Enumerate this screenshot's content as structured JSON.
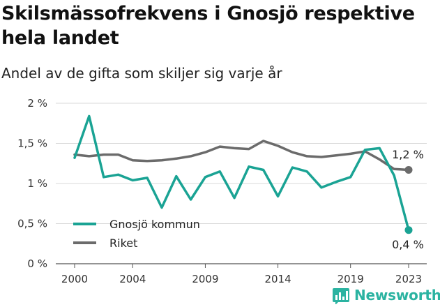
{
  "title": "Skilsmässofrekvens i Gnosjö respektive hela landet",
  "subtitle": "Andel av de gifta som skiljer sig varje år",
  "brand": {
    "name": "Newsworthy",
    "icon": "bar-chart-logo-icon",
    "color": "#2bb3a1"
  },
  "chart_data": {
    "type": "line",
    "x": [
      2000,
      2001,
      2002,
      2003,
      2004,
      2005,
      2006,
      2007,
      2008,
      2009,
      2010,
      2011,
      2012,
      2013,
      2014,
      2015,
      2016,
      2017,
      2018,
      2019,
      2020,
      2021,
      2022,
      2023
    ],
    "series": [
      {
        "name": "Gnosjö kommun",
        "color": "#1aa394",
        "values": [
          1.32,
          1.84,
          1.08,
          1.11,
          1.04,
          1.07,
          0.7,
          1.09,
          0.8,
          1.08,
          1.15,
          0.82,
          1.21,
          1.17,
          0.84,
          1.2,
          1.15,
          0.95,
          1.02,
          1.08,
          1.42,
          1.44,
          1.1,
          0.42
        ]
      },
      {
        "name": "Riket",
        "color": "#6b6b6b",
        "values": [
          1.36,
          1.34,
          1.36,
          1.36,
          1.29,
          1.28,
          1.29,
          1.31,
          1.34,
          1.39,
          1.46,
          1.44,
          1.43,
          1.53,
          1.47,
          1.39,
          1.34,
          1.33,
          1.35,
          1.37,
          1.4,
          1.3,
          1.18,
          1.17
        ]
      }
    ],
    "end_labels": {
      "Riket": "1,2 %",
      "Gnosjö kommun": "0,4 %"
    },
    "ylim": [
      0,
      2
    ],
    "yticks": [
      0,
      0.5,
      1,
      1.5,
      2
    ],
    "ytick_labels": [
      "0 %",
      "0,5 %",
      "1 %",
      "1,5 %",
      "2 %"
    ],
    "xticks": [
      2000,
      2004,
      2009,
      2014,
      2019,
      2023
    ],
    "xtick_labels": [
      "2000",
      "2004",
      "2009",
      "2014",
      "2019",
      "2023"
    ],
    "grid": true,
    "legend_position": "bottom-left"
  }
}
